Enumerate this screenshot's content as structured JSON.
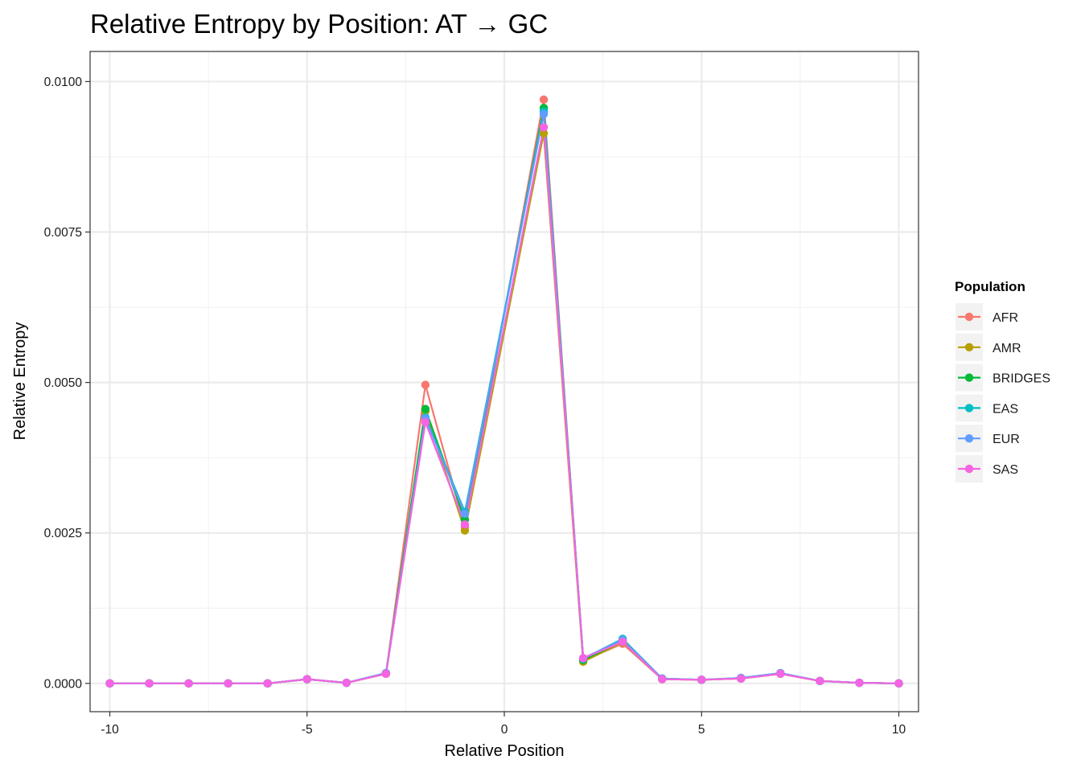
{
  "chart_data": {
    "type": "line",
    "title": "Relative Entropy by Position: AT → GC",
    "xlabel": "Relative Position",
    "ylabel": "Relative Entropy",
    "xlim": [
      -10.5,
      10.5
    ],
    "ylim": [
      -0.00047,
      0.0105
    ],
    "x_ticks": [
      -10,
      -5,
      0,
      5,
      10
    ],
    "x_tick_labels": [
      "-10",
      "-5",
      "0",
      "5",
      "10"
    ],
    "y_ticks": [
      0.0,
      0.0025,
      0.005,
      0.0075,
      0.01
    ],
    "y_tick_labels": [
      "0.0000",
      "0.0025",
      "0.0050",
      "0.0075",
      "0.0100"
    ],
    "grid": true,
    "legend": {
      "title": "Population",
      "position": "right"
    },
    "x": [
      -10,
      -9,
      -8,
      -7,
      -6,
      -5,
      -4,
      -3,
      -2,
      -1,
      1,
      2,
      3,
      4,
      5,
      6,
      7,
      8,
      9,
      10
    ],
    "series": [
      {
        "name": "AFR",
        "color": "#F8766D",
        "values": [
          0.0,
          0.0,
          0.0,
          0.0,
          0.0,
          7e-05,
          1e-05,
          0.00016,
          0.00496,
          0.0026,
          0.0097,
          0.00038,
          0.00066,
          7e-05,
          6e-05,
          8e-05,
          0.00016,
          4e-05,
          1e-05,
          0.0
        ]
      },
      {
        "name": "AMR",
        "color": "#B79F00",
        "values": [
          0.0,
          0.0,
          0.0,
          0.0,
          0.0,
          7e-05,
          1e-05,
          0.00016,
          0.00452,
          0.00254,
          0.00914,
          0.00036,
          0.00068,
          7e-05,
          6e-05,
          8e-05,
          0.00016,
          4e-05,
          1e-05,
          0.0
        ]
      },
      {
        "name": "BRIDGES",
        "color": "#00BA38",
        "values": [
          0.0,
          0.0,
          0.0,
          0.0,
          0.0,
          7e-05,
          1e-05,
          0.00017,
          0.00456,
          0.00272,
          0.00956,
          0.00039,
          0.0007,
          8e-05,
          6e-05,
          9e-05,
          0.00017,
          4e-05,
          1e-05,
          0.0
        ]
      },
      {
        "name": "EAS",
        "color": "#00BFC4",
        "values": [
          0.0,
          0.0,
          0.0,
          0.0,
          0.0,
          7e-05,
          1e-05,
          0.00017,
          0.00442,
          0.00285,
          0.0095,
          0.00041,
          0.00074,
          8e-05,
          6e-05,
          9e-05,
          0.00017,
          4e-05,
          1e-05,
          0.0
        ]
      },
      {
        "name": "EUR",
        "color": "#619CFF",
        "values": [
          0.0,
          0.0,
          0.0,
          0.0,
          0.0,
          7e-05,
          1e-05,
          0.00017,
          0.0044,
          0.00282,
          0.00946,
          0.00042,
          0.00072,
          8e-05,
          6e-05,
          9e-05,
          0.00017,
          4e-05,
          1e-05,
          0.0
        ]
      },
      {
        "name": "SAS",
        "color": "#F564E3",
        "values": [
          0.0,
          0.0,
          0.0,
          0.0,
          0.0,
          7e-05,
          1e-05,
          0.00016,
          0.00434,
          0.00264,
          0.00924,
          0.00042,
          0.00069,
          7e-05,
          6e-05,
          8e-05,
          0.00016,
          4e-05,
          1e-05,
          0.0
        ]
      }
    ]
  }
}
